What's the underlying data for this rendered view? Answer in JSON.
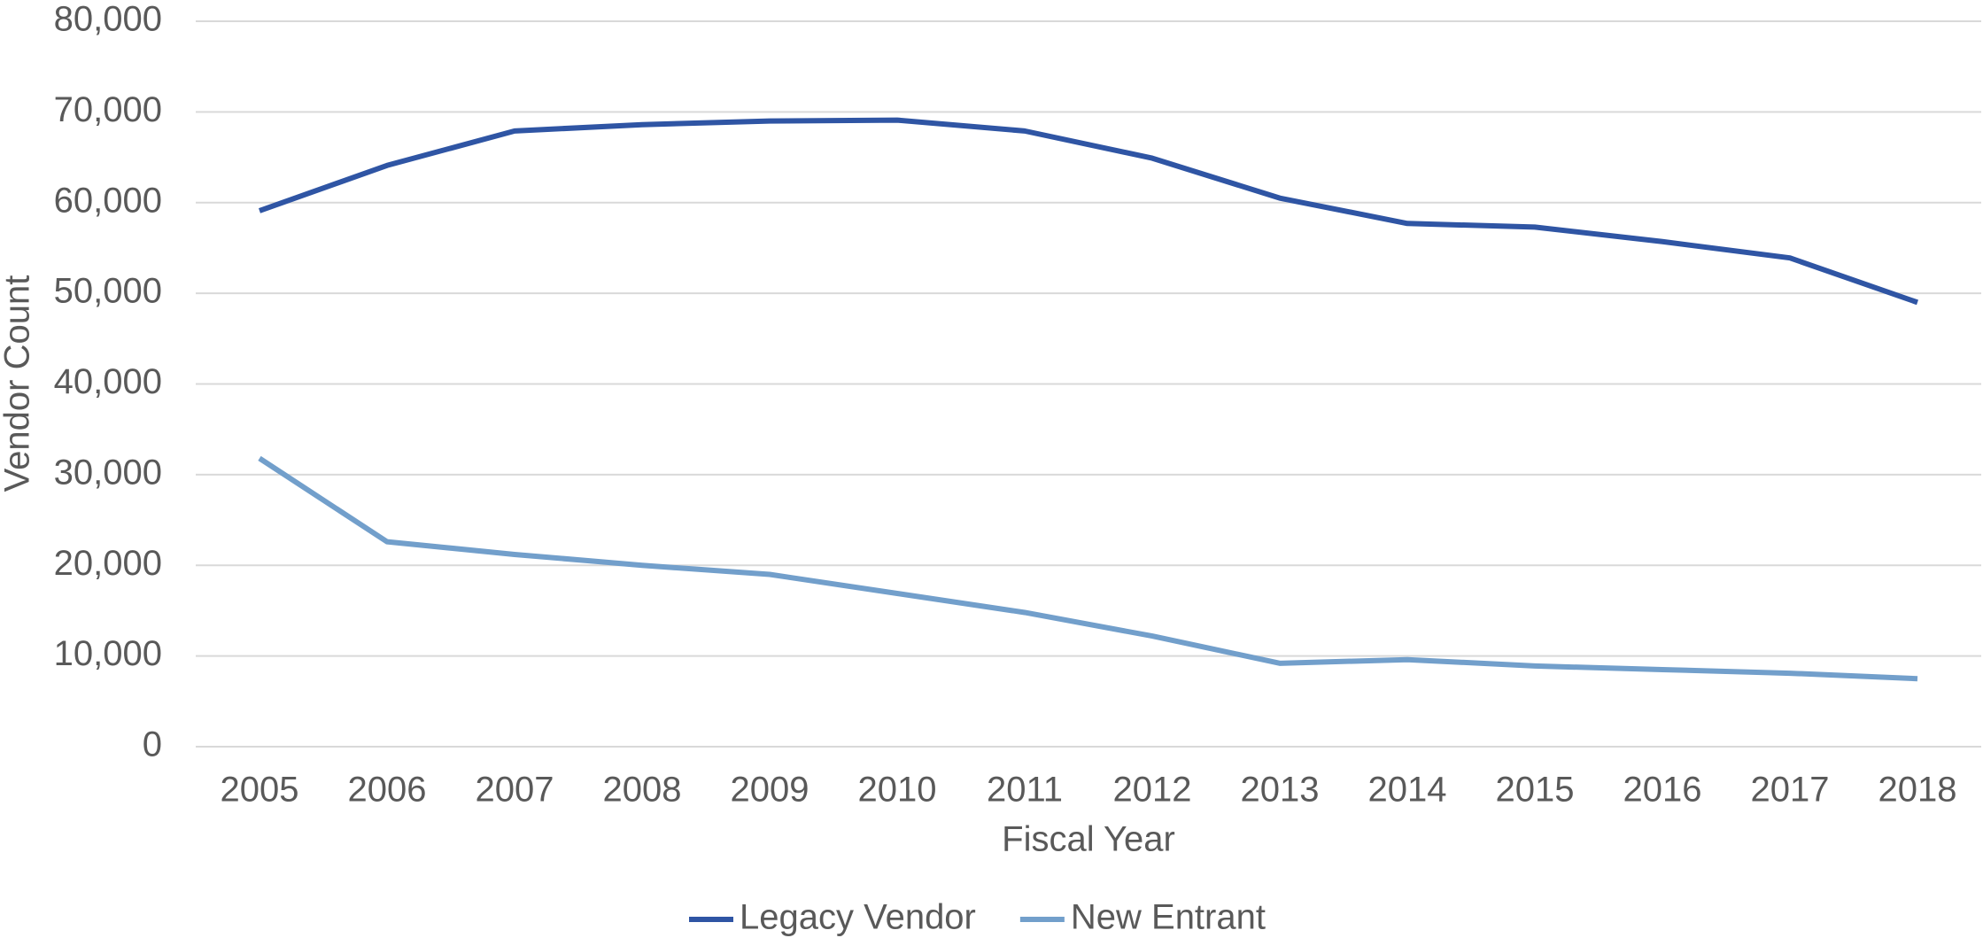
{
  "chart_data": {
    "type": "line",
    "x_label": "Fiscal Year",
    "y_label": "Vendor Count",
    "categories": [
      "2005",
      "2006",
      "2007",
      "2008",
      "2009",
      "2010",
      "2011",
      "2012",
      "2013",
      "2014",
      "2015",
      "2016",
      "2017",
      "2018"
    ],
    "series": [
      {
        "name": "Legacy Vendor",
        "color": "#2f55a4",
        "values": [
          59100,
          64100,
          67900,
          68600,
          69000,
          69100,
          67900,
          64900,
          60500,
          57700,
          57300,
          55700,
          53900,
          49000
        ]
      },
      {
        "name": "New Entrant",
        "color": "#729fcb",
        "values": [
          31800,
          22600,
          21200,
          20000,
          19000,
          16900,
          14800,
          12200,
          9200,
          9600,
          8900,
          8500,
          8100,
          7500
        ]
      }
    ],
    "ylim": [
      0,
      80000
    ],
    "yticks": [
      0,
      {
        "value": 10000,
        "label": "10,000"
      },
      {
        "value": 20000,
        "label": "20,000"
      },
      {
        "value": 30000,
        "label": "30,000"
      },
      {
        "value": 40000,
        "label": "40,000"
      },
      {
        "value": 50000,
        "label": "50,000"
      },
      {
        "value": 60000,
        "label": "60,000"
      },
      {
        "value": 70000,
        "label": "70,000"
      },
      {
        "value": 80000,
        "label": "80,000"
      }
    ],
    "grid": true,
    "legend": "bottom"
  }
}
